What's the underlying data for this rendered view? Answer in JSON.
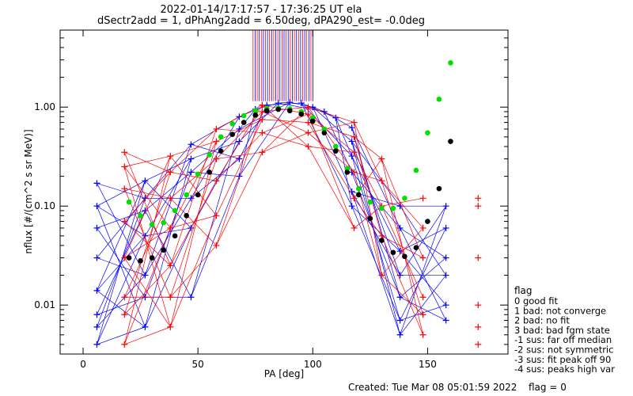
{
  "chart_data": {
    "type": "scatter",
    "title_line1": "2022-01-14/17:17:57 - 17:36:25 UT ela",
    "title_line2": "dSectr2add = 1, dPhAng2add = 6.50deg, dPA290_est=  -0.0deg",
    "xlabel": "PA [deg]",
    "ylabel": "nflux [#/(cm^2 s sr MeV)]",
    "xlim": [
      -10,
      185
    ],
    "ylim": [
      0.0032,
      6.0
    ],
    "yscale": "log",
    "x_ticks": [
      0,
      50,
      100,
      150
    ],
    "y_ticks": [
      {
        "value": 1.0,
        "label": "1.00"
      },
      {
        "value": 0.1,
        "label": "0.10"
      },
      {
        "value": 0.01,
        "label": "0.01"
      }
    ],
    "series": [
      {
        "color": "#0000ff",
        "marker": "plus",
        "x": [
          6,
          6,
          6,
          6,
          6,
          6,
          6,
          6,
          27,
          27,
          27,
          27,
          27,
          27,
          27,
          47,
          47,
          47,
          47,
          47,
          47,
          68,
          68,
          68,
          68,
          68,
          75,
          80,
          85,
          90,
          95,
          100,
          105,
          110,
          117,
          117,
          117,
          117,
          117,
          117,
          138,
          138,
          138,
          138,
          138,
          138,
          138,
          158,
          158,
          158,
          158,
          158,
          158
        ],
        "y": [
          0.17,
          0.1,
          0.06,
          0.03,
          0.014,
          0.008,
          0.006,
          0.004,
          0.18,
          0.12,
          0.09,
          0.05,
          0.02,
          0.012,
          0.006,
          0.42,
          0.3,
          0.22,
          0.12,
          0.06,
          0.012,
          0.8,
          0.6,
          0.45,
          0.3,
          0.2,
          0.95,
          1.05,
          1.1,
          1.12,
          1.1,
          1.0,
          0.9,
          0.78,
          0.62,
          0.45,
          0.32,
          0.22,
          0.14,
          0.1,
          0.1,
          0.06,
          0.035,
          0.02,
          0.012,
          0.007,
          0.005,
          0.1,
          0.06,
          0.03,
          0.02,
          0.01,
          0.007
        ]
      },
      {
        "color": "#ff0000",
        "marker": "plus",
        "x": [
          18,
          18,
          18,
          18,
          18,
          18,
          18,
          18,
          38,
          38,
          38,
          38,
          38,
          38,
          38,
          58,
          58,
          58,
          58,
          58,
          58,
          78,
          78,
          78,
          78,
          78,
          98,
          98,
          98,
          98,
          98,
          118,
          118,
          118,
          118,
          118,
          118,
          130,
          130,
          130,
          130,
          130,
          148,
          148,
          148,
          148,
          148,
          148,
          172,
          172,
          172,
          172,
          172,
          172
        ],
        "y": [
          0.35,
          0.25,
          0.15,
          0.07,
          0.03,
          0.012,
          0.008,
          0.004,
          0.32,
          0.22,
          0.12,
          0.06,
          0.025,
          0.012,
          0.006,
          0.6,
          0.45,
          0.3,
          0.18,
          0.08,
          0.04,
          1.05,
          0.9,
          0.75,
          0.55,
          0.35,
          1.0,
          0.85,
          0.7,
          0.55,
          0.4,
          0.7,
          0.5,
          0.35,
          0.22,
          0.12,
          0.06,
          0.3,
          0.18,
          0.1,
          0.05,
          0.02,
          0.12,
          0.06,
          0.03,
          0.012,
          0.008,
          0.005,
          0.12,
          0.1,
          0.03,
          0.01,
          0.006,
          0.004
        ]
      },
      {
        "color": "#00e000",
        "marker": "dot",
        "x": [
          20,
          25,
          30,
          35,
          40,
          45,
          50,
          55,
          60,
          65,
          70,
          75,
          80,
          85,
          90,
          95,
          100,
          105,
          110,
          115,
          120,
          125,
          130,
          135,
          140,
          145,
          150,
          155,
          160
        ],
        "y": [
          0.11,
          0.08,
          0.065,
          0.068,
          0.09,
          0.13,
          0.21,
          0.33,
          0.5,
          0.68,
          0.82,
          0.92,
          0.97,
          0.98,
          0.96,
          0.9,
          0.78,
          0.6,
          0.4,
          0.24,
          0.15,
          0.11,
          0.095,
          0.095,
          0.12,
          0.23,
          0.55,
          1.2,
          2.8
        ]
      },
      {
        "color": "#000000",
        "marker": "dot",
        "x": [
          20,
          25,
          30,
          35,
          40,
          45,
          50,
          55,
          60,
          65,
          70,
          75,
          80,
          85,
          90,
          95,
          100,
          105,
          110,
          115,
          120,
          125,
          130,
          135,
          140,
          145,
          150,
          155,
          160
        ],
        "y": [
          0.03,
          0.028,
          0.03,
          0.036,
          0.05,
          0.08,
          0.13,
          0.22,
          0.36,
          0.53,
          0.7,
          0.83,
          0.92,
          0.95,
          0.92,
          0.85,
          0.72,
          0.55,
          0.36,
          0.22,
          0.13,
          0.075,
          0.045,
          0.034,
          0.031,
          0.038,
          0.07,
          0.15,
          0.45
        ]
      }
    ]
  },
  "legend": {
    "title": "flag",
    "items": [
      " 0 good fit",
      " 1 bad: not converge",
      " 2 bad: no fit",
      " 3 bad: bad fgm state",
      "-1 sus: far off median",
      "-2 sus: not symmetric",
      "-3 sus: fit peak off 90",
      "-4 sus: peaks high var"
    ]
  },
  "footer": {
    "created": "Created: Tue Mar 08 05:01:59 2022",
    "flag": "flag = 0"
  }
}
